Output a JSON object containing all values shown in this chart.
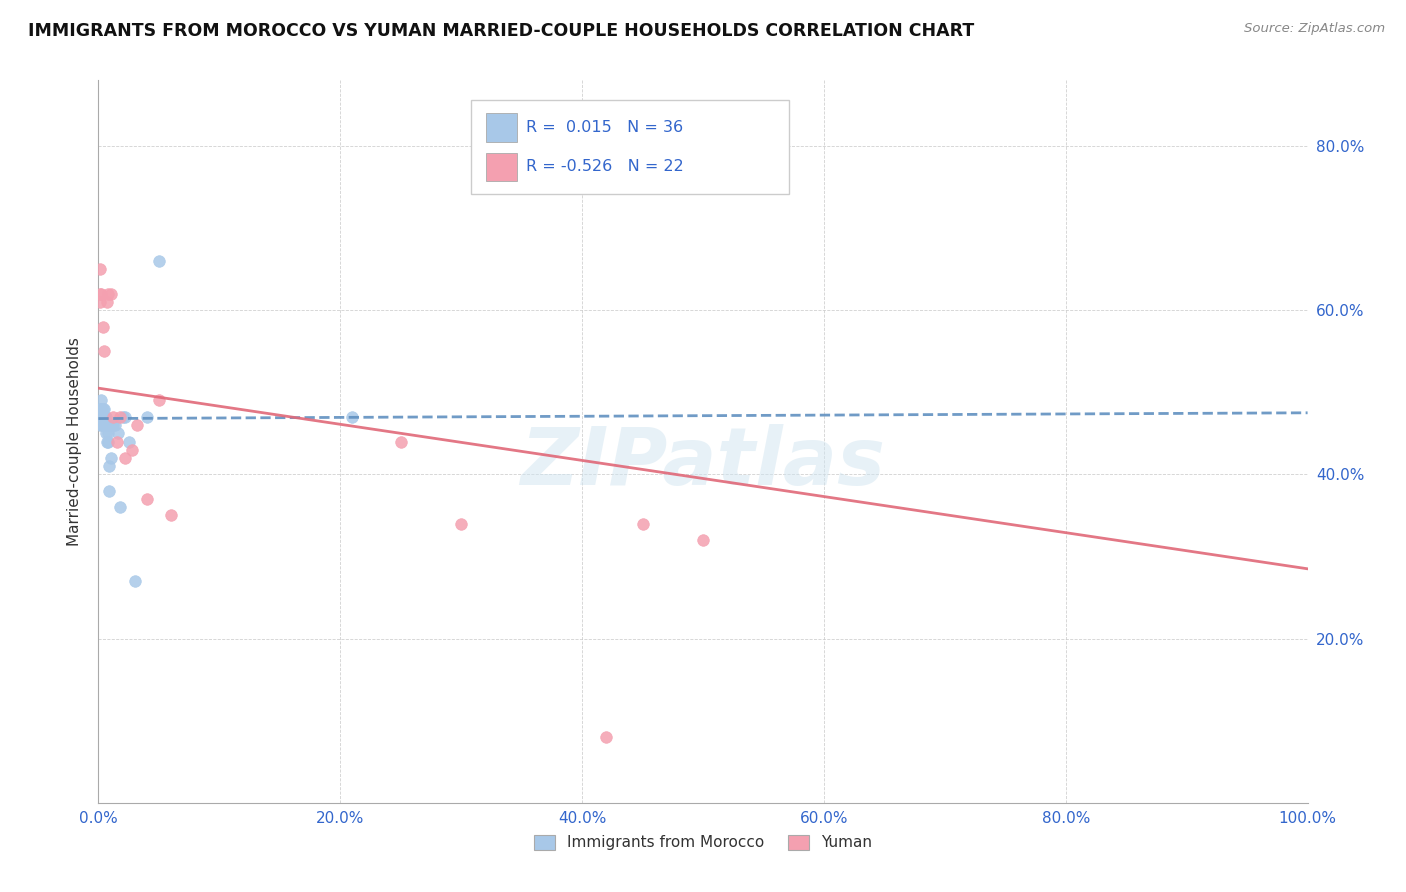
{
  "title": "IMMIGRANTS FROM MOROCCO VS YUMAN MARRIED-COUPLE HOUSEHOLDS CORRELATION CHART",
  "source": "Source: ZipAtlas.com",
  "ylabel": "Married-couple Households",
  "watermark": "ZIPatlas",
  "xlim": [
    0.0,
    1.0
  ],
  "ylim": [
    0.0,
    0.88
  ],
  "xtick_labels": [
    "0.0%",
    "20.0%",
    "40.0%",
    "60.0%",
    "80.0%",
    "100.0%"
  ],
  "xtick_vals": [
    0.0,
    0.2,
    0.4,
    0.6,
    0.8,
    1.0
  ],
  "ytick_labels": [
    "20.0%",
    "40.0%",
    "60.0%",
    "80.0%"
  ],
  "ytick_vals": [
    0.2,
    0.4,
    0.6,
    0.8
  ],
  "legend1_label": "Immigrants from Morocco",
  "legend2_label": "Yuman",
  "R1": 0.015,
  "N1": 36,
  "R2": -0.526,
  "N2": 22,
  "blue_color": "#a8c8e8",
  "pink_color": "#f4a0b0",
  "line_blue_color": "#6090c0",
  "line_pink_color": "#e06878",
  "trend_text_color": "#3366cc",
  "blue_line_y0": 0.468,
  "blue_line_y1": 0.475,
  "pink_line_y0": 0.505,
  "pink_line_y1": 0.285,
  "blue_scatter_x": [
    0.001,
    0.001,
    0.001,
    0.002,
    0.002,
    0.003,
    0.003,
    0.003,
    0.004,
    0.004,
    0.004,
    0.005,
    0.005,
    0.005,
    0.006,
    0.006,
    0.006,
    0.007,
    0.007,
    0.008,
    0.008,
    0.009,
    0.009,
    0.01,
    0.011,
    0.012,
    0.014,
    0.016,
    0.018,
    0.02,
    0.022,
    0.025,
    0.03,
    0.04,
    0.05,
    0.21
  ],
  "blue_scatter_y": [
    0.47,
    0.48,
    0.46,
    0.48,
    0.49,
    0.47,
    0.47,
    0.46,
    0.46,
    0.47,
    0.48,
    0.47,
    0.48,
    0.47,
    0.47,
    0.46,
    0.45,
    0.44,
    0.46,
    0.44,
    0.45,
    0.38,
    0.41,
    0.42,
    0.46,
    0.46,
    0.46,
    0.45,
    0.36,
    0.47,
    0.47,
    0.44,
    0.27,
    0.47,
    0.66,
    0.47
  ],
  "pink_scatter_x": [
    0.001,
    0.001,
    0.001,
    0.002,
    0.004,
    0.005,
    0.007,
    0.008,
    0.01,
    0.012,
    0.015,
    0.018,
    0.022,
    0.028,
    0.032,
    0.04,
    0.05,
    0.06,
    0.25,
    0.3,
    0.45,
    0.5
  ],
  "pink_scatter_y": [
    0.65,
    0.62,
    0.61,
    0.62,
    0.58,
    0.55,
    0.61,
    0.62,
    0.62,
    0.47,
    0.44,
    0.47,
    0.42,
    0.43,
    0.46,
    0.37,
    0.49,
    0.35,
    0.44,
    0.34,
    0.34,
    0.32
  ],
  "pink_scatter_x_extra": [
    0.42
  ],
  "pink_scatter_y_extra": [
    0.08
  ]
}
